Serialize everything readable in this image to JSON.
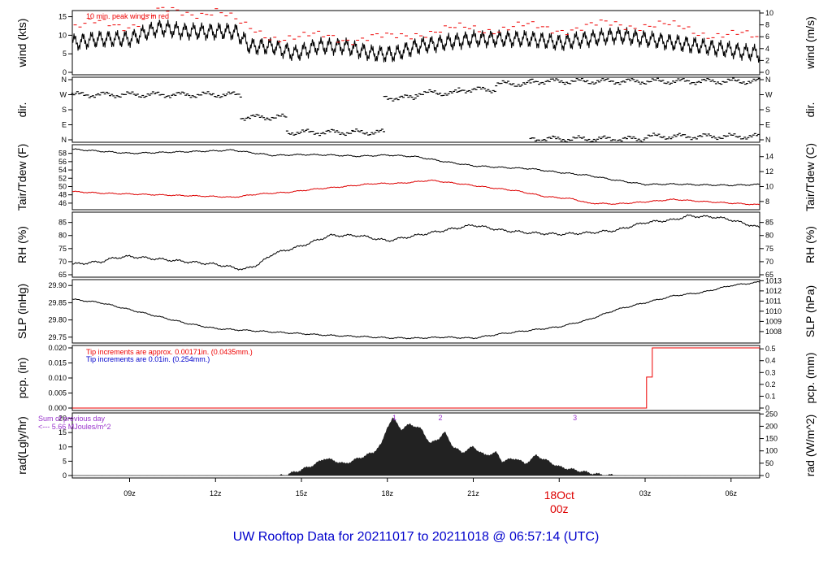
{
  "title": "UW Rooftop Data for 20211017  to  20211018 @ 06:57:14  (UTC)",
  "colors": {
    "title": "#0000cc",
    "date_marker": "#dd0000",
    "peak": "#ee0000",
    "series": "#000000",
    "dew": "#dd0000",
    "pcp_red": "#ee0000",
    "pcp_blue": "#0000cc",
    "rad_note": "#9933cc",
    "rad_fill": "#222222"
  },
  "x_axis": {
    "ticks": [
      {
        "hour": 9,
        "label": "09z"
      },
      {
        "hour": 12,
        "label": "12z"
      },
      {
        "hour": 15,
        "label": "15z"
      },
      {
        "hour": 18,
        "label": "18z"
      },
      {
        "hour": 21,
        "label": "21z"
      },
      {
        "hour": 27,
        "label": "03z"
      },
      {
        "hour": 30,
        "label": "06z"
      }
    ],
    "date_marker": {
      "hour": 24,
      "date": "18Oct",
      "time": "00z"
    }
  },
  "chart_data": [
    {
      "type": "line",
      "id": "wind",
      "ylabel": "wind (kts)",
      "ylabel_right": "wind (m/s)",
      "ylim": [
        0,
        16
      ],
      "yticks_left": [
        0,
        5,
        10,
        15
      ],
      "yticks_right": [
        0,
        2,
        4,
        6,
        8,
        10
      ],
      "annotation": "10 min. peak winds in red",
      "series": [
        {
          "points": [
            [
              7.0,
              8
            ],
            [
              8.0,
              9
            ],
            [
              9.0,
              9
            ],
            [
              10.0,
              12
            ],
            [
              11.0,
              11
            ],
            [
              12.0,
              11
            ],
            [
              12.7,
              11
            ],
            [
              13.2,
              7
            ],
            [
              14.0,
              7
            ],
            [
              14.8,
              5
            ],
            [
              15.5,
              7
            ],
            [
              16.5,
              7
            ],
            [
              17.5,
              5
            ],
            [
              18.3,
              5
            ],
            [
              19.0,
              7
            ],
            [
              20.0,
              8
            ],
            [
              21.0,
              9
            ],
            [
              22.0,
              9
            ],
            [
              23.0,
              9
            ],
            [
              24.0,
              8
            ],
            [
              25.0,
              9
            ],
            [
              26.0,
              10
            ],
            [
              27.0,
              9
            ],
            [
              28.0,
              8
            ],
            [
              29.0,
              7
            ],
            [
              30.0,
              6
            ],
            [
              31.0,
              5
            ]
          ]
        },
        {
          "points": [
            [
              7.0,
              12
            ],
            [
              8.0,
              13
            ],
            [
              9.0,
              13
            ],
            [
              10.0,
              16
            ],
            [
              11.0,
              16
            ],
            [
              12.0,
              17
            ],
            [
              13.0,
              12
            ],
            [
              14.0,
              10
            ],
            [
              15.0,
              9
            ],
            [
              16.0,
              10
            ],
            [
              17.0,
              9
            ],
            [
              18.0,
              9
            ],
            [
              19.0,
              11
            ],
            [
              20.0,
              11
            ],
            [
              21.0,
              12
            ],
            [
              22.0,
              12
            ],
            [
              23.0,
              12
            ],
            [
              24.0,
              12
            ],
            [
              25.0,
              12
            ],
            [
              26.0,
              13
            ],
            [
              27.0,
              13
            ],
            [
              28.0,
              12
            ],
            [
              29.0,
              11
            ],
            [
              30.0,
              10
            ],
            [
              31.0,
              9
            ]
          ]
        }
      ]
    },
    {
      "type": "scatter",
      "id": "dir",
      "ylabel": "dir.",
      "ylabel_right": "dir.",
      "yticks": [
        "N",
        "E",
        "S",
        "W",
        "N"
      ],
      "ylim": [
        0,
        360
      ],
      "segments": [
        {
          "x": [
            7.0,
            12.9
          ],
          "y": 270
        },
        {
          "x": [
            12.9,
            14.5
          ],
          "y": 135
        },
        {
          "x": [
            14.5,
            16.8
          ],
          "y": 45
        },
        {
          "x": [
            16.8,
            17.9
          ],
          "y": 45
        },
        {
          "x": [
            17.9,
            19.0
          ],
          "y": 252
        },
        {
          "x": [
            19.0,
            20.5
          ],
          "y": 280
        },
        {
          "x": [
            20.5,
            21.8
          ],
          "y": 300
        },
        {
          "x": [
            21.8,
            23.0
          ],
          "y": 335
        },
        {
          "x": [
            23.0,
            31.0
          ],
          "y": 350
        }
      ],
      "segments_low": [
        {
          "x": [
            23.0,
            27.0
          ],
          "y": 5
        },
        {
          "x": [
            27.0,
            31.0
          ],
          "y": 20
        }
      ]
    },
    {
      "type": "line",
      "id": "temp",
      "ylabel": "Tair/Tdew (F)",
      "ylabel_right": "Tair/Tdew (C)",
      "ylim": [
        45,
        59.5
      ],
      "yticks_left": [
        46,
        48,
        50,
        52,
        54,
        56,
        58
      ],
      "yticks_right": [
        8,
        10,
        12,
        14
      ],
      "series": [
        {
          "name": "Tair",
          "points": [
            [
              7.0,
              59.0
            ],
            [
              8.0,
              58.5
            ],
            [
              9.0,
              58.0
            ],
            [
              10.0,
              58.2
            ],
            [
              11.0,
              58.4
            ],
            [
              12.0,
              58.6
            ],
            [
              12.6,
              58.8
            ],
            [
              13.0,
              58.4
            ],
            [
              14.0,
              57.5
            ],
            [
              15.0,
              57.7
            ],
            [
              16.0,
              57.6
            ],
            [
              17.0,
              57.3
            ],
            [
              18.0,
              57.6
            ],
            [
              19.0,
              57.2
            ],
            [
              20.0,
              56.0
            ],
            [
              21.0,
              55.0
            ],
            [
              22.0,
              54.6
            ],
            [
              23.0,
              54.3
            ],
            [
              24.0,
              53.4
            ],
            [
              25.0,
              52.7
            ],
            [
              26.0,
              51.5
            ],
            [
              27.0,
              50.5
            ],
            [
              28.0,
              50.6
            ],
            [
              29.0,
              50.4
            ],
            [
              30.0,
              50.3
            ],
            [
              31.0,
              50.5
            ]
          ]
        },
        {
          "name": "Tdew",
          "points": [
            [
              7.0,
              48.8
            ],
            [
              8.0,
              48.4
            ],
            [
              9.0,
              48.2
            ],
            [
              10.0,
              48.0
            ],
            [
              11.0,
              47.8
            ],
            [
              12.0,
              47.6
            ],
            [
              12.6,
              47.4
            ],
            [
              13.5,
              48.2
            ],
            [
              14.5,
              48.6
            ],
            [
              15.5,
              49.4
            ],
            [
              16.5,
              50.0
            ],
            [
              17.5,
              50.7
            ],
            [
              18.5,
              50.8
            ],
            [
              19.5,
              51.5
            ],
            [
              20.5,
              50.7
            ],
            [
              21.5,
              49.8
            ],
            [
              22.5,
              49.0
            ],
            [
              23.5,
              47.6
            ],
            [
              24.5,
              47.0
            ],
            [
              25.0,
              46.0
            ],
            [
              26.0,
              45.8
            ],
            [
              27.0,
              46.3
            ],
            [
              28.0,
              46.9
            ],
            [
              29.0,
              46.4
            ],
            [
              30.0,
              46.0
            ],
            [
              31.0,
              45.6
            ]
          ]
        }
      ]
    },
    {
      "type": "line",
      "id": "rh",
      "ylabel": "RH (%)",
      "ylabel_right": "RH (%)",
      "ylim": [
        65,
        88
      ],
      "yticks_left": [
        65,
        70,
        75,
        80,
        85
      ],
      "yticks_right": [
        65,
        70,
        75,
        80,
        85
      ],
      "series": [
        {
          "points": [
            [
              7.0,
              69
            ],
            [
              8.0,
              70
            ],
            [
              8.5,
              71.5
            ],
            [
              9.0,
              72
            ],
            [
              10.0,
              71
            ],
            [
              11.0,
              70
            ],
            [
              12.0,
              69
            ],
            [
              13.0,
              67
            ],
            [
              13.5,
              69
            ],
            [
              14.0,
              73
            ],
            [
              15.0,
              76
            ],
            [
              16.0,
              80
            ],
            [
              17.0,
              80
            ],
            [
              17.5,
              79
            ],
            [
              18.0,
              78
            ],
            [
              18.5,
              79
            ],
            [
              19.0,
              80
            ],
            [
              20.0,
              82
            ],
            [
              21.0,
              84
            ],
            [
              22.0,
              82
            ],
            [
              23.0,
              81
            ],
            [
              24.0,
              80.5
            ],
            [
              25.0,
              81
            ],
            [
              26.0,
              82
            ],
            [
              27.0,
              85
            ],
            [
              28.0,
              86
            ],
            [
              28.5,
              87.5
            ],
            [
              29.5,
              87
            ],
            [
              30.0,
              86
            ],
            [
              31.0,
              83
            ]
          ]
        }
      ]
    },
    {
      "type": "line",
      "id": "slp",
      "ylabel": "SLP (inHg)",
      "ylabel_right": "SLP (hPa)",
      "ylim": [
        29.74,
        29.91
      ],
      "yticks_left": [
        "29.75",
        "29.80",
        "29.85",
        "29.90"
      ],
      "yticks_right": [
        "1008",
        "1009",
        "1010",
        "1011",
        "1012",
        "1013"
      ],
      "series": [
        {
          "points": [
            [
              7.0,
              29.86
            ],
            [
              8.0,
              29.85
            ],
            [
              9.0,
              29.83
            ],
            [
              10.0,
              29.81
            ],
            [
              11.0,
              29.79
            ],
            [
              12.0,
              29.775
            ],
            [
              13.0,
              29.77
            ],
            [
              14.0,
              29.765
            ],
            [
              15.0,
              29.76
            ],
            [
              16.0,
              29.755
            ],
            [
              17.0,
              29.752
            ],
            [
              18.0,
              29.748
            ],
            [
              19.0,
              29.747
            ],
            [
              20.0,
              29.75
            ],
            [
              21.0,
              29.747
            ],
            [
              22.0,
              29.76
            ],
            [
              23.0,
              29.77
            ],
            [
              24.0,
              29.78
            ],
            [
              25.0,
              29.8
            ],
            [
              26.0,
              29.83
            ],
            [
              27.0,
              29.85
            ],
            [
              28.0,
              29.87
            ],
            [
              29.0,
              29.88
            ],
            [
              30.0,
              29.9
            ],
            [
              31.0,
              29.91
            ]
          ]
        }
      ]
    },
    {
      "type": "line",
      "id": "pcp",
      "ylabel": "pcp. (in)",
      "ylabel_right": "pcp. (mm)",
      "ylim": [
        0,
        0.02
      ],
      "yticks_left": [
        "0.000",
        "0.005",
        "0.010",
        "0.015",
        "0.020"
      ],
      "yticks_right": [
        "0",
        "0.1",
        "0.2",
        "0.3",
        "0.4",
        "0.5"
      ],
      "notes": [
        "Tip increments are approx. 0.00171in. (0.0435mm.)",
        "Tip increments are 0.01in. (0.254mm.)"
      ],
      "series": [
        {
          "points": [
            [
              7.0,
              0
            ],
            [
              27.05,
              0
            ],
            [
              27.05,
              0.0103
            ],
            [
              27.25,
              0.0103
            ],
            [
              27.25,
              0.02
            ],
            [
              31.0,
              0.02
            ]
          ]
        }
      ]
    },
    {
      "type": "area",
      "id": "rad",
      "ylabel": "rad(Lgly/hr)",
      "ylabel_right": "rad (W/m^2)",
      "ylim": [
        0,
        21
      ],
      "yticks_left": [
        0,
        5,
        10,
        15,
        20
      ],
      "yticks_right": [
        0,
        50,
        100,
        150,
        200,
        250
      ],
      "notes": [
        "Sum of previous day",
        "<--- 5.66 MJoules/m^2"
      ],
      "markers": [
        {
          "hour": 18.25,
          "label": "1"
        },
        {
          "hour": 19.85,
          "label": "2"
        },
        {
          "hour": 24.55,
          "label": "3"
        }
      ],
      "series": [
        {
          "points": [
            [
              7.0,
              0
            ],
            [
              14.2,
              0
            ],
            [
              14.5,
              0.3
            ],
            [
              15.0,
              2
            ],
            [
              15.5,
              4
            ],
            [
              15.8,
              6
            ],
            [
              16.2,
              5
            ],
            [
              16.5,
              4
            ],
            [
              17.0,
              6
            ],
            [
              17.5,
              8
            ],
            [
              17.8,
              11
            ],
            [
              18.0,
              17
            ],
            [
              18.2,
              20
            ],
            [
              18.5,
              16
            ],
            [
              18.8,
              18
            ],
            [
              19.2,
              16
            ],
            [
              19.5,
              11
            ],
            [
              19.8,
              13
            ],
            [
              20.0,
              15
            ],
            [
              20.3,
              10
            ],
            [
              20.6,
              8
            ],
            [
              21.0,
              10
            ],
            [
              21.4,
              7
            ],
            [
              21.8,
              8
            ],
            [
              22.0,
              5
            ],
            [
              22.5,
              6
            ],
            [
              22.8,
              4
            ],
            [
              23.2,
              7
            ],
            [
              23.6,
              5
            ],
            [
              24.0,
              3
            ],
            [
              24.5,
              2
            ],
            [
              25.0,
              1
            ],
            [
              25.5,
              0.2
            ],
            [
              26.0,
              0
            ],
            [
              31.0,
              0
            ]
          ]
        }
      ]
    }
  ]
}
